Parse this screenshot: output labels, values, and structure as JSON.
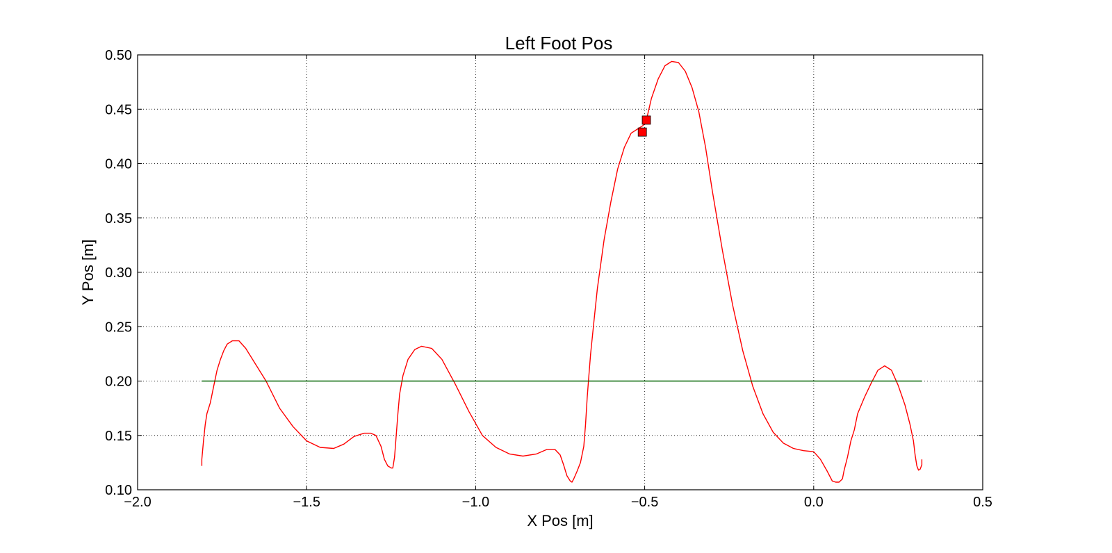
{
  "chart_data": {
    "type": "line",
    "title": "Left Foot Pos",
    "xlabel": "X Pos [m]",
    "ylabel": "Y Pos [m]",
    "xlim": [
      -2.0,
      0.5
    ],
    "ylim": [
      0.1,
      0.5
    ],
    "xticks": [
      -2.0,
      -1.5,
      -1.0,
      -0.5,
      0.0,
      0.5
    ],
    "xtick_labels": [
      "−2.0",
      "−1.5",
      "−1.0",
      "−0.5",
      "0.0",
      "0.5"
    ],
    "yticks": [
      0.1,
      0.15,
      0.2,
      0.25,
      0.3,
      0.35,
      0.4,
      0.45,
      0.5
    ],
    "ytick_labels": [
      "0.10",
      "0.15",
      "0.20",
      "0.25",
      "0.30",
      "0.35",
      "0.40",
      "0.45",
      "0.50"
    ],
    "grid": true,
    "series": [
      {
        "color": "#ff0000",
        "x": [
          -1.81,
          -1.81,
          -1.805,
          -1.8,
          -1.795,
          -1.785,
          -1.775,
          -1.765,
          -1.755,
          -1.745,
          -1.735,
          -1.72,
          -1.7,
          -1.68,
          -1.65,
          -1.62,
          -1.58,
          -1.54,
          -1.5,
          -1.46,
          -1.42,
          -1.39,
          -1.36,
          -1.33,
          -1.31,
          -1.295,
          -1.28,
          -1.27,
          -1.26,
          -1.255,
          -1.25,
          -1.245,
          -1.24,
          -1.235,
          -1.23,
          -1.225,
          -1.215,
          -1.2,
          -1.18,
          -1.16,
          -1.13,
          -1.1,
          -1.06,
          -1.02,
          -0.98,
          -0.94,
          -0.9,
          -0.86,
          -0.82,
          -0.79,
          -0.765,
          -0.75,
          -0.74,
          -0.73,
          -0.72,
          -0.715,
          -0.71,
          -0.7,
          -0.69,
          -0.68,
          -0.675,
          -0.67,
          -0.665,
          -0.66,
          -0.65,
          -0.64,
          -0.62,
          -0.6,
          -0.58,
          -0.56,
          -0.54,
          -0.52,
          -0.505,
          -0.495,
          -0.48,
          -0.46,
          -0.44,
          -0.42,
          -0.4,
          -0.38,
          -0.36,
          -0.34,
          -0.32,
          -0.3,
          -0.27,
          -0.24,
          -0.21,
          -0.18,
          -0.15,
          -0.12,
          -0.09,
          -0.06,
          -0.03,
          0.0,
          0.02,
          0.04,
          0.055,
          0.065,
          0.075,
          0.085,
          0.09,
          0.1,
          0.11,
          0.12,
          0.13,
          0.15,
          0.17,
          0.19,
          0.21,
          0.23,
          0.25,
          0.27,
          0.285,
          0.295,
          0.3,
          0.305,
          0.31,
          0.315,
          0.32,
          0.32
        ],
        "y": [
          0.122,
          0.128,
          0.145,
          0.16,
          0.17,
          0.18,
          0.195,
          0.21,
          0.22,
          0.228,
          0.234,
          0.237,
          0.237,
          0.23,
          0.215,
          0.2,
          0.175,
          0.158,
          0.145,
          0.139,
          0.138,
          0.142,
          0.149,
          0.152,
          0.152,
          0.15,
          0.14,
          0.128,
          0.122,
          0.121,
          0.12,
          0.12,
          0.13,
          0.15,
          0.17,
          0.188,
          0.205,
          0.22,
          0.229,
          0.232,
          0.23,
          0.22,
          0.197,
          0.172,
          0.15,
          0.139,
          0.133,
          0.131,
          0.133,
          0.137,
          0.137,
          0.132,
          0.123,
          0.113,
          0.108,
          0.107,
          0.11,
          0.117,
          0.125,
          0.14,
          0.16,
          0.185,
          0.205,
          0.225,
          0.255,
          0.285,
          0.33,
          0.365,
          0.395,
          0.415,
          0.428,
          0.432,
          0.435,
          0.44,
          0.46,
          0.478,
          0.49,
          0.494,
          0.493,
          0.485,
          0.47,
          0.448,
          0.415,
          0.375,
          0.32,
          0.27,
          0.228,
          0.195,
          0.17,
          0.153,
          0.143,
          0.138,
          0.136,
          0.135,
          0.128,
          0.117,
          0.108,
          0.107,
          0.107,
          0.11,
          0.118,
          0.13,
          0.145,
          0.155,
          0.17,
          0.185,
          0.198,
          0.21,
          0.214,
          0.21,
          0.196,
          0.178,
          0.16,
          0.145,
          0.132,
          0.122,
          0.118,
          0.119,
          0.123,
          0.128
        ]
      },
      {
        "color": "#006400",
        "x": [
          -1.81,
          0.32
        ],
        "y": [
          0.2,
          0.2
        ]
      }
    ],
    "markers": [
      {
        "x": -0.507,
        "y": 0.429,
        "color": "#ff0000",
        "shape": "square"
      },
      {
        "x": -0.495,
        "y": 0.44,
        "color": "#ff0000",
        "shape": "square"
      }
    ]
  }
}
